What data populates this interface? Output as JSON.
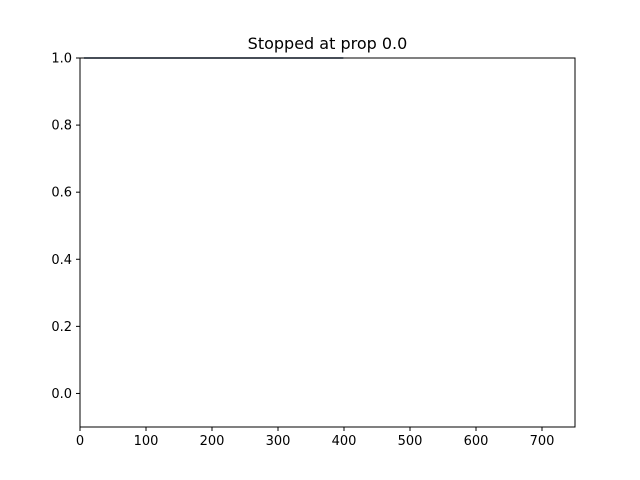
{
  "chart_data": {
    "type": "line",
    "title": "Stopped at prop 0.0",
    "xlabel": "",
    "ylabel": "",
    "xlim": [
      0,
      750
    ],
    "ylim": [
      -0.1,
      1.0
    ],
    "xticks": [
      0,
      100,
      200,
      300,
      400,
      500,
      600,
      700
    ],
    "yticks": [
      0.0,
      0.2,
      0.4,
      0.6,
      0.8,
      1.0
    ],
    "xtick_labels": [
      "0",
      "100",
      "200",
      "300",
      "400",
      "500",
      "600",
      "700"
    ],
    "ytick_labels": [
      "0.0",
      "0.2",
      "0.4",
      "0.6",
      "0.8",
      "1.0"
    ],
    "grid": false,
    "series": [
      {
        "color": "#1f3a5f",
        "x": [
          6,
          399
        ],
        "y": [
          1.0,
          1.0
        ]
      }
    ]
  }
}
